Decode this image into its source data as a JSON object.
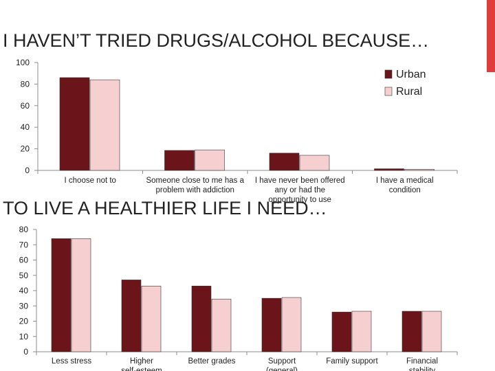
{
  "colors": {
    "accent": "#e03c3c",
    "urban": "#6b1419",
    "rural": "#f6d0d0",
    "axis": "#8c8c8c"
  },
  "chart_data": [
    {
      "type": "bar",
      "title": "I HAVEN’T TRIED DRUGS/ALCOHOL BECAUSE…",
      "categories": [
        "I choose not to",
        "Someone close to me has a problem with addiction",
        "I have never been offered any or had the opportunity to use",
        "I have a medical condition"
      ],
      "series": [
        {
          "name": "Urban",
          "values": [
            86,
            18.5,
            16,
            1.5
          ]
        },
        {
          "name": "Rural",
          "values": [
            84,
            19,
            14,
            1
          ]
        }
      ],
      "ylim": [
        0,
        100
      ],
      "yticks": [
        0,
        20,
        40,
        60,
        80,
        100
      ],
      "legend": "top-right",
      "grid": false
    },
    {
      "type": "bar",
      "title": "TO LIVE A HEALTHIER LIFE I NEED…",
      "categories": [
        "Less stress",
        "Higher self-esteem",
        "Better grades",
        "Support (general)",
        "Family support",
        "Financial stability"
      ],
      "series": [
        {
          "name": "Urban",
          "values": [
            74,
            47,
            43,
            35,
            26,
            26.5
          ]
        },
        {
          "name": "Rural",
          "values": [
            74,
            43,
            34.5,
            35.5,
            26.5,
            26.5
          ]
        }
      ],
      "ylim": [
        0,
        80
      ],
      "yticks": [
        0,
        10,
        20,
        30,
        40,
        50,
        60,
        70,
        80
      ],
      "legend": "none",
      "grid": false
    }
  ]
}
